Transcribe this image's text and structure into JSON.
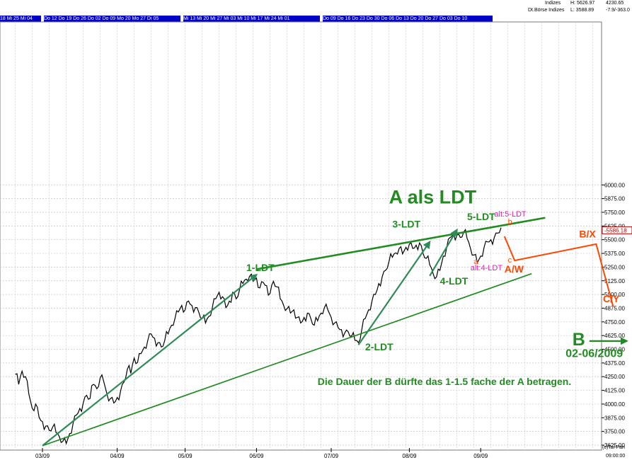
{
  "header": {
    "instrument": "Indizes",
    "index_name": "Dt.Börse Indizes",
    "high": "H: 5626.97",
    "low": "L: 3588.89",
    "last": "4230.65",
    "change": "-7.9/-363.0"
  },
  "date_bands": [
    "18 Mi 25 Mi 04",
    "Do 12 Do 19 Do 26 Do 02 Do 09 Mo 20 Mo 27 Di 05",
    "Mi 13 Mi 20 Mi 27 Mi 03 Mi 10 Mi 17 Mi 24 Mi 01",
    "Do 09 Do 16 Do 23 Do 30 Do 06 Do 13 Do 20 Do 27 Do 03 Do 10"
  ],
  "price_box": "5586.18",
  "footer": {
    "copyright": "(c)Tai-Pan",
    "time": "09:00:00"
  },
  "chart_data": {
    "type": "line",
    "y_axis": {
      "ticks": [
        3625,
        3750,
        3875,
        4000,
        4125,
        4250,
        4375,
        4500,
        4625,
        4750,
        4875,
        5000,
        5125,
        5250,
        5375,
        5500,
        5625,
        5750,
        5875,
        6000
      ],
      "tick_labels": [
        "3625.00",
        "3750.00",
        "3875.00",
        "4000.00",
        "4125.00",
        "4250.00",
        "4375.00",
        "4500.00",
        "4625.00",
        "4750.00",
        "4875.00",
        "5000.00",
        "5125.00",
        "5250.00",
        "5375.00",
        "5500.00",
        "5625.00",
        "5750.00",
        "5875.00",
        "6000.00"
      ],
      "ylim": [
        3600,
        6040
      ],
      "side": "right"
    },
    "x_axis": {
      "month_labels": [
        {
          "label": "03/09",
          "t": 0
        },
        {
          "label": "04/09",
          "t": 22
        },
        {
          "label": "05/09",
          "t": 42
        },
        {
          "label": "06/09",
          "t": 63
        },
        {
          "label": "07/09",
          "t": 85
        },
        {
          "label": "08/09",
          "t": 108
        },
        {
          "label": "09/09",
          "t": 129
        }
      ],
      "t_range": [
        -8,
        172
      ],
      "unit": "trading days since 03/09"
    },
    "grid": true,
    "series": [
      {
        "kind": "price",
        "color": "#000000",
        "points": [
          [
            -8,
            4270
          ],
          [
            -7,
            4180
          ],
          [
            -6,
            4300
          ],
          [
            -5,
            4250
          ],
          [
            -4,
            4090
          ],
          [
            -3,
            3960
          ],
          [
            -2,
            4000
          ],
          [
            -1,
            3880
          ],
          [
            0,
            3840
          ],
          [
            1,
            3800
          ],
          [
            2,
            3760
          ],
          [
            3,
            3790
          ],
          [
            4,
            3740
          ],
          [
            5,
            3700
          ],
          [
            6,
            3660
          ],
          [
            7,
            3640
          ],
          [
            8,
            3730
          ],
          [
            9,
            3820
          ],
          [
            10,
            3900
          ],
          [
            11,
            3960
          ],
          [
            12,
            4010
          ],
          [
            13,
            4080
          ],
          [
            14,
            4050
          ],
          [
            15,
            4180
          ],
          [
            16,
            4140
          ],
          [
            17,
            4240
          ],
          [
            18,
            4210
          ],
          [
            19,
            4090
          ],
          [
            20,
            4050
          ],
          [
            21,
            4010
          ],
          [
            22,
            4060
          ],
          [
            23,
            4120
          ],
          [
            24,
            4200
          ],
          [
            25,
            4320
          ],
          [
            26,
            4280
          ],
          [
            27,
            4420
          ],
          [
            28,
            4380
          ],
          [
            29,
            4460
          ],
          [
            30,
            4520
          ],
          [
            31,
            4580
          ],
          [
            32,
            4640
          ],
          [
            33,
            4600
          ],
          [
            34,
            4560
          ],
          [
            35,
            4520
          ],
          [
            36,
            4580
          ],
          [
            37,
            4640
          ],
          [
            38,
            4720
          ],
          [
            39,
            4780
          ],
          [
            40,
            4840
          ],
          [
            41,
            4900
          ],
          [
            42,
            4860
          ],
          [
            43,
            4940
          ],
          [
            44,
            4900
          ],
          [
            45,
            4880
          ],
          [
            46,
            4840
          ],
          [
            47,
            4780
          ],
          [
            48,
            4740
          ],
          [
            49,
            4800
          ],
          [
            50,
            4880
          ],
          [
            51,
            4960
          ],
          [
            52,
            5020
          ],
          [
            53,
            4980
          ],
          [
            54,
            4880
          ],
          [
            55,
            4940
          ],
          [
            56,
            5020
          ],
          [
            57,
            4960
          ],
          [
            58,
            5040
          ],
          [
            59,
            5100
          ],
          [
            60,
            5140
          ],
          [
            61,
            5170
          ],
          [
            62,
            5120
          ],
          [
            63,
            5150
          ],
          [
            64,
            5060
          ],
          [
            65,
            5110
          ],
          [
            66,
            5080
          ],
          [
            67,
            5010
          ],
          [
            68,
            5120
          ],
          [
            69,
            5070
          ],
          [
            70,
            4960
          ],
          [
            71,
            4900
          ],
          [
            72,
            4870
          ],
          [
            73,
            4830
          ],
          [
            74,
            4860
          ],
          [
            75,
            4790
          ],
          [
            76,
            4740
          ],
          [
            77,
            4790
          ],
          [
            78,
            4830
          ],
          [
            79,
            4780
          ],
          [
            80,
            4720
          ],
          [
            81,
            4760
          ],
          [
            82,
            4830
          ],
          [
            83,
            4880
          ],
          [
            84,
            4860
          ],
          [
            85,
            4790
          ],
          [
            86,
            4740
          ],
          [
            87,
            4700
          ],
          [
            88,
            4680
          ],
          [
            89,
            4650
          ],
          [
            90,
            4660
          ],
          [
            91,
            4620
          ],
          [
            92,
            4580
          ],
          [
            93,
            4560
          ],
          [
            94,
            4680
          ],
          [
            95,
            4780
          ],
          [
            96,
            4860
          ],
          [
            97,
            4940
          ],
          [
            98,
            5000
          ],
          [
            99,
            5100
          ],
          [
            100,
            5160
          ],
          [
            101,
            5220
          ],
          [
            102,
            5300
          ],
          [
            103,
            5340
          ],
          [
            104,
            5380
          ],
          [
            105,
            5420
          ],
          [
            106,
            5370
          ],
          [
            107,
            5430
          ],
          [
            108,
            5460
          ],
          [
            109,
            5420
          ],
          [
            110,
            5450
          ],
          [
            111,
            5470
          ],
          [
            112,
            5380
          ],
          [
            113,
            5330
          ],
          [
            114,
            5270
          ],
          [
            115,
            5190
          ],
          [
            116,
            5160
          ],
          [
            117,
            5220
          ],
          [
            118,
            5350
          ],
          [
            119,
            5430
          ],
          [
            120,
            5520
          ],
          [
            121,
            5560
          ],
          [
            122,
            5540
          ],
          [
            123,
            5520
          ],
          [
            124,
            5570
          ],
          [
            125,
            5510
          ],
          [
            126,
            5420
          ],
          [
            127,
            5360
          ],
          [
            128,
            5290
          ],
          [
            129,
            5350
          ],
          [
            130,
            5430
          ],
          [
            131,
            5480
          ],
          [
            132,
            5500
          ],
          [
            133,
            5520
          ],
          [
            134,
            5560
          ],
          [
            135,
            5610
          ]
        ]
      }
    ],
    "trend_lines": [
      {
        "name": "upper",
        "color": "#228b22",
        "width": 2.6,
        "from": [
          63,
          5230
        ],
        "to": [
          148,
          5700
        ]
      },
      {
        "name": "lower",
        "color": "#228b22",
        "width": 1.7,
        "from": [
          0,
          3620
        ],
        "to": [
          144,
          5190
        ]
      }
    ],
    "wave_arrows": [
      {
        "color": "#2e8b57",
        "from": [
          0,
          3620
        ],
        "to": [
          63,
          5180
        ]
      },
      {
        "color": "#2e8b57",
        "from": [
          93,
          4540
        ],
        "to": [
          114,
          5480
        ]
      },
      {
        "color": "#2e8b57",
        "from": [
          114,
          5170
        ],
        "to": [
          122,
          5590
        ]
      }
    ],
    "projection": {
      "color": "#ff4500",
      "points": [
        [
          136,
          5530
        ],
        [
          139,
          5310
        ],
        [
          163,
          5460
        ],
        [
          168,
          4890
        ]
      ]
    },
    "annotations": [
      {
        "text": "A als LDT",
        "t": 102,
        "y": 5830,
        "color": "#228b22",
        "size": 27,
        "weight": "bold"
      },
      {
        "text": "1-LDT",
        "t": 60,
        "y": 5215,
        "color": "#228b22",
        "size": 14,
        "weight": "bold"
      },
      {
        "text": "2-LDT",
        "t": 95,
        "y": 4490,
        "color": "#228b22",
        "size": 14,
        "weight": "bold"
      },
      {
        "text": "3-LDT",
        "t": 103,
        "y": 5610,
        "color": "#228b22",
        "size": 14,
        "weight": "bold"
      },
      {
        "text": "4-LDT",
        "t": 117,
        "y": 5090,
        "color": "#228b22",
        "size": 14,
        "weight": "bold"
      },
      {
        "text": "5-LDT",
        "t": 125,
        "y": 5680,
        "color": "#228b22",
        "size": 14,
        "weight": "bold"
      },
      {
        "text": "alt:5-LDT",
        "t": 133,
        "y": 5710,
        "color": "#e020b0",
        "size": 11,
        "weight": "normal"
      },
      {
        "text": "alt:4-LDT",
        "t": 126,
        "y": 5220,
        "color": "#e020b0",
        "size": 11,
        "weight": "normal"
      },
      {
        "text": "a",
        "t": 127,
        "y": 5280,
        "color": "#ff4500",
        "size": 11,
        "weight": "normal"
      },
      {
        "text": "b",
        "t": 137,
        "y": 5640,
        "color": "#ff4500",
        "size": 11,
        "weight": "normal"
      },
      {
        "text": "c",
        "t": 137,
        "y": 5290,
        "color": "#ff4500",
        "size": 11,
        "weight": "normal"
      },
      {
        "text": "A/W",
        "t": 136,
        "y": 5200,
        "color": "#ff4500",
        "size": 14,
        "weight": "bold"
      },
      {
        "text": "B/X",
        "t": 158,
        "y": 5520,
        "color": "#ff4500",
        "size": 14,
        "weight": "bold"
      },
      {
        "text": "C/Y",
        "t": 165,
        "y": 4930,
        "color": "#ff4500",
        "size": 14,
        "weight": "bold"
      },
      {
        "text": "B",
        "t": 156,
        "y": 4535,
        "color": "#228b22",
        "size": 25,
        "weight": "bold"
      },
      {
        "text": "02-06/2009",
        "t": 154,
        "y": 4430,
        "color": "#228b22",
        "size": 16,
        "weight": "bold"
      },
      {
        "text": "Die Dauer der B dürfte das 1-1.5 fache der A betragen.",
        "t": 81,
        "y": 4175,
        "color": "#228b22",
        "size": 14,
        "weight": "bold"
      }
    ],
    "b_arrow": {
      "color": "#228b22",
      "from": [
        161,
        4575
      ],
      "to": [
        172,
        4575
      ]
    }
  }
}
